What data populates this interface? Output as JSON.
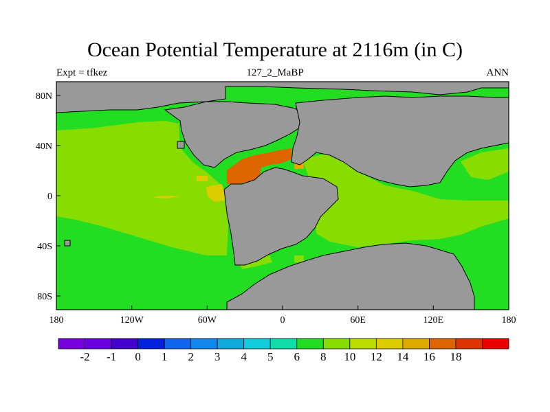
{
  "title": "Ocean Potential Temperature at 2116m (in C)",
  "subtitle_left": "Expt = tfkez",
  "subtitle_center": "127_2_MaBP",
  "subtitle_right": "ANN",
  "map": {
    "lon_ticks": [
      "180",
      "120W",
      "60W",
      "0",
      "60E",
      "120E",
      "180"
    ],
    "lat_ticks": [
      "80N",
      "40N",
      "0",
      "40S",
      "80S"
    ],
    "land_color": "#999999"
  },
  "colorbar": {
    "colors": [
      "#7700dd",
      "#6a00e0",
      "#4400cc",
      "#0022dd",
      "#1166ee",
      "#1188ee",
      "#11aadd",
      "#11ccdd",
      "#11ddaa",
      "#22dd22",
      "#88dd00",
      "#bbdd00",
      "#ddcc00",
      "#ddaa00",
      "#dd6600",
      "#dd3300",
      "#ee0000"
    ],
    "labels": [
      "-2",
      "-1",
      "0",
      "1",
      "2",
      "3",
      "4",
      "5",
      "6",
      "8",
      "10",
      "12",
      "14",
      "16",
      "18"
    ]
  }
}
